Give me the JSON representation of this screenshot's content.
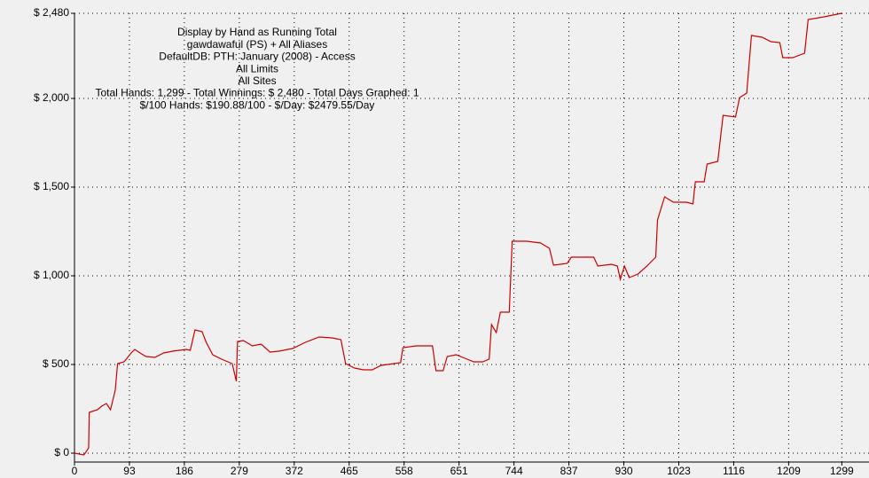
{
  "chart_data": {
    "type": "line",
    "annotations": [
      "Display by Hand as Running Total",
      "gawdawaful (PS) + All Aliases",
      "DefaultDB: PTH: January (2008) - Access",
      "All Limits",
      "All Sites",
      "Total Hands: 1,299 - Total Winnings: $ 2,480 - Total Days Graphed: 1",
      "$/100 Hands: $190.88/100 - $/Day: $2479.55/Day"
    ],
    "x": [
      0,
      16,
      24,
      25,
      39,
      46,
      54,
      61,
      69,
      73,
      84,
      96,
      102,
      111,
      121,
      136,
      151,
      166,
      189,
      196,
      204,
      216,
      223,
      234,
      249,
      267,
      274,
      276,
      286,
      301,
      316,
      331,
      346,
      369,
      391,
      414,
      436,
      451,
      459,
      474,
      489,
      504,
      519,
      541,
      552,
      556,
      579,
      606,
      612,
      624,
      631,
      646,
      661,
      676,
      691,
      702,
      706,
      714,
      721,
      736,
      741,
      766,
      789,
      804,
      811,
      834,
      841,
      856,
      879,
      886,
      909,
      919,
      924,
      931,
      939,
      954,
      969,
      984,
      987,
      999,
      1014,
      1036,
      1047,
      1051,
      1066,
      1071,
      1089,
      1098,
      1119,
      1126,
      1138,
      1146,
      1164,
      1179,
      1194,
      1199,
      1216,
      1236,
      1242,
      1269,
      1291,
      1299
    ],
    "series": [
      {
        "name": "Running Total",
        "color": "#cc0000",
        "values": [
          0,
          -10,
          30,
          230,
          245,
          265,
          280,
          245,
          355,
          505,
          515,
          565,
          585,
          565,
          545,
          540,
          565,
          575,
          585,
          580,
          695,
          685,
          625,
          555,
          530,
          505,
          405,
          630,
          635,
          605,
          615,
          570,
          575,
          590,
          625,
          655,
          650,
          640,
          505,
          480,
          470,
          470,
          495,
          505,
          510,
          595,
          605,
          605,
          465,
          465,
          545,
          555,
          535,
          515,
          515,
          530,
          725,
          680,
          795,
          795,
          1195,
          1195,
          1185,
          1155,
          1060,
          1070,
          1105,
          1105,
          1105,
          1055,
          1065,
          1055,
          980,
          1055,
          990,
          1010,
          1055,
          1105,
          1315,
          1445,
          1415,
          1415,
          1405,
          1530,
          1530,
          1630,
          1645,
          1905,
          1895,
          2005,
          2030,
          2355,
          2345,
          2320,
          2315,
          2230,
          2230,
          2255,
          2445,
          2460,
          2475,
          2480
        ]
      }
    ],
    "xlim": [
      0,
      1345
    ],
    "xticks": [
      0,
      93,
      186,
      279,
      372,
      465,
      558,
      651,
      744,
      837,
      930,
      1023,
      1116,
      1209,
      1299
    ],
    "ylim": [
      -50,
      2480
    ],
    "yticks": [
      {
        "value": 0,
        "label": "$ 0"
      },
      {
        "value": 500,
        "label": "$ 500"
      },
      {
        "value": 1000,
        "label": "$ 1,000"
      },
      {
        "value": 1500,
        "label": "$ 1,500"
      },
      {
        "value": 2000,
        "label": "$ 2,000"
      },
      {
        "value": 2480,
        "label": "$ 2,480"
      }
    ],
    "grid": true
  }
}
